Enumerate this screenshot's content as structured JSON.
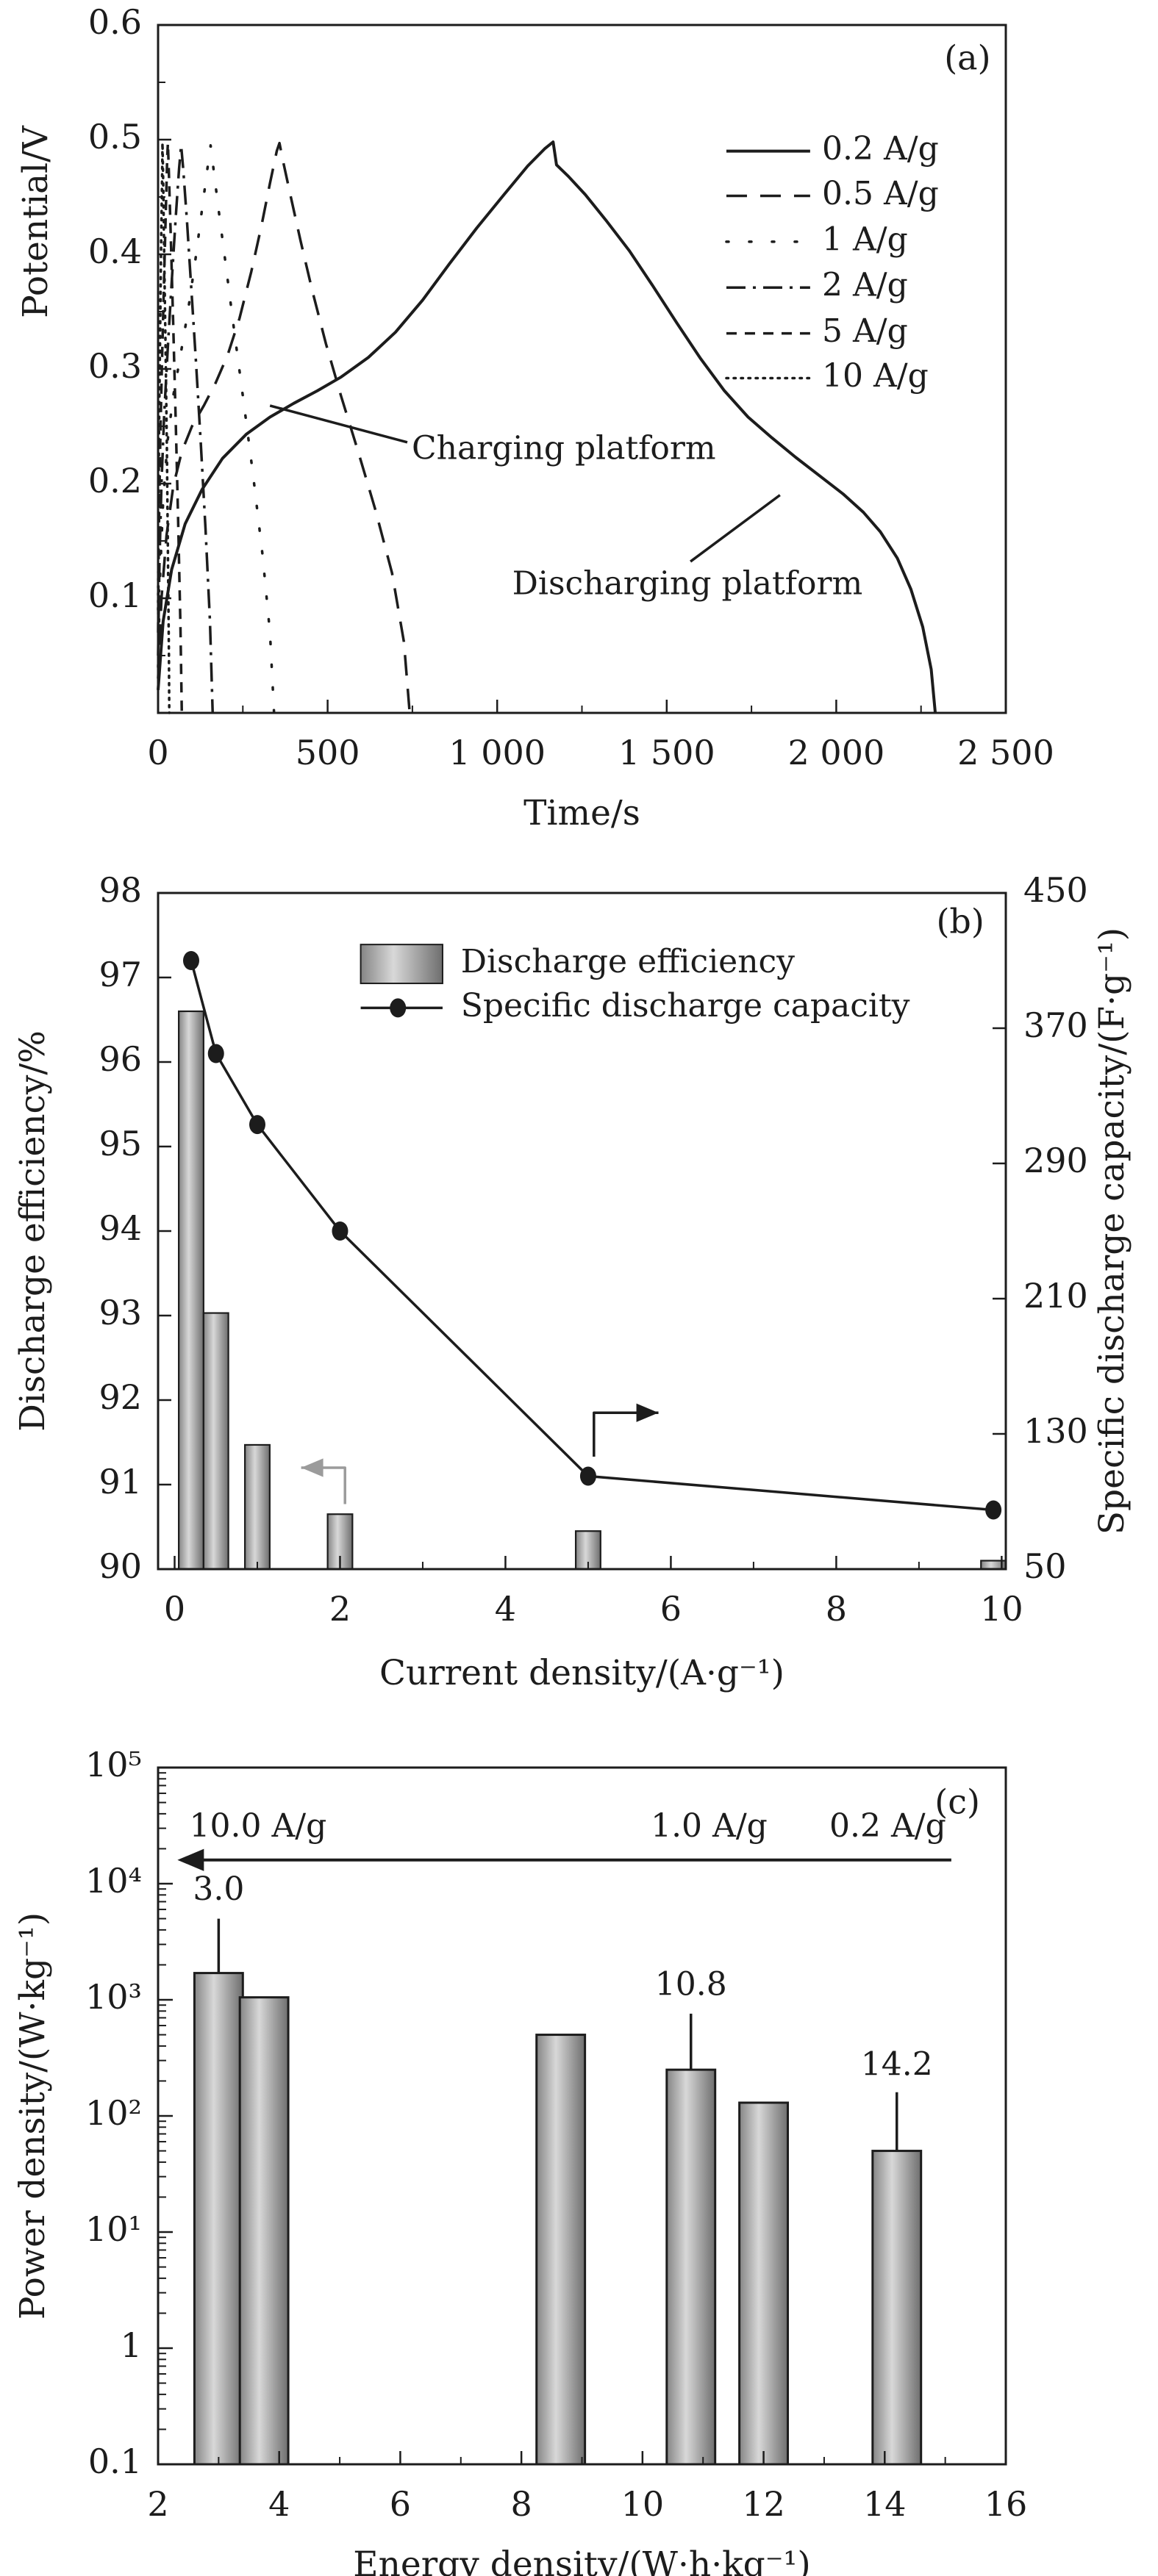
{
  "figure": {
    "ink": "#1c1c1c",
    "background": "#ffffff",
    "bar_gradient": [
      "#858585",
      "#d8d8d8",
      "#6e6e6e"
    ],
    "gray_arrow_color": "#9b9b9b"
  },
  "chart_data": [
    {
      "id": "a",
      "type": "line",
      "panel_label": "(a)",
      "panel_label_pos": [
        2387,
        0.569
      ],
      "xlabel": "Time/s",
      "ylabel": "Potential/V",
      "xlim": [
        0,
        2500
      ],
      "ylim": [
        0,
        0.6
      ],
      "xticks": [
        0,
        500,
        1000,
        1500,
        2000,
        2500
      ],
      "xtick_labels": [
        "0",
        "500",
        "1 000",
        "1 500",
        "2 000",
        "2 500"
      ],
      "xminor": [
        250,
        750,
        1250,
        1750,
        2250
      ],
      "yticks": [
        0.1,
        0.2,
        0.3,
        0.4,
        0.5,
        0.6
      ],
      "ytick_labels": [
        "0.1",
        "0.2",
        "0.3",
        "0.4",
        "0.5",
        "0.6"
      ],
      "yminor": [
        0.05,
        0.15,
        0.25,
        0.35,
        0.45,
        0.55
      ],
      "grid": false,
      "legend": {
        "position": "upper right",
        "line_x": [
          1676,
          1923
        ],
        "text_x": 1958,
        "rows_v": [
          0.49,
          0.451,
          0.411,
          0.371,
          0.331,
          0.292
        ]
      },
      "series": [
        {
          "name": "0.2 A/g",
          "dash": "",
          "cap": "butt",
          "width": 4,
          "points": [
            [
              0,
              0.02
            ],
            [
              15,
              0.08
            ],
            [
              40,
              0.125
            ],
            [
              80,
              0.165
            ],
            [
              130,
              0.195
            ],
            [
              190,
              0.222
            ],
            [
              260,
              0.243
            ],
            [
              330,
              0.258
            ],
            [
              400,
              0.27
            ],
            [
              470,
              0.281
            ],
            [
              540,
              0.293
            ],
            [
              620,
              0.31
            ],
            [
              700,
              0.332
            ],
            [
              780,
              0.36
            ],
            [
              860,
              0.392
            ],
            [
              940,
              0.423
            ],
            [
              1020,
              0.452
            ],
            [
              1090,
              0.477
            ],
            [
              1140,
              0.492
            ],
            [
              1165,
              0.498
            ],
            [
              1175,
              0.478
            ],
            [
              1210,
              0.468
            ],
            [
              1260,
              0.452
            ],
            [
              1320,
              0.43
            ],
            [
              1390,
              0.403
            ],
            [
              1460,
              0.372
            ],
            [
              1530,
              0.34
            ],
            [
              1600,
              0.309
            ],
            [
              1670,
              0.281
            ],
            [
              1740,
              0.258
            ],
            [
              1810,
              0.24
            ],
            [
              1880,
              0.223
            ],
            [
              1950,
              0.207
            ],
            [
              2020,
              0.191
            ],
            [
              2080,
              0.175
            ],
            [
              2130,
              0.158
            ],
            [
              2180,
              0.135
            ],
            [
              2220,
              0.108
            ],
            [
              2255,
              0.075
            ],
            [
              2280,
              0.038
            ],
            [
              2292,
              0.0
            ]
          ]
        },
        {
          "name": "0.5 A/g",
          "dash": "28 18",
          "cap": "butt",
          "width": 3.5,
          "points": [
            [
              0,
              0.03
            ],
            [
              10,
              0.1
            ],
            [
              25,
              0.155
            ],
            [
              45,
              0.198
            ],
            [
              70,
              0.228
            ],
            [
              100,
              0.25
            ],
            [
              135,
              0.268
            ],
            [
              170,
              0.288
            ],
            [
              205,
              0.312
            ],
            [
              240,
              0.344
            ],
            [
              275,
              0.385
            ],
            [
              305,
              0.425
            ],
            [
              330,
              0.462
            ],
            [
              350,
              0.49
            ],
            [
              358,
              0.497
            ],
            [
              368,
              0.482
            ],
            [
              390,
              0.452
            ],
            [
              420,
              0.412
            ],
            [
              455,
              0.368
            ],
            [
              495,
              0.322
            ],
            [
              540,
              0.276
            ],
            [
              590,
              0.228
            ],
            [
              640,
              0.178
            ],
            [
              690,
              0.122
            ],
            [
              725,
              0.062
            ],
            [
              742,
              0.0
            ]
          ]
        },
        {
          "name": "1 A/g",
          "dash": "3 28",
          "cap": "round",
          "width": 3.5,
          "points": [
            [
              0,
              0.04
            ],
            [
              6,
              0.12
            ],
            [
              15,
              0.185
            ],
            [
              28,
              0.237
            ],
            [
              45,
              0.277
            ],
            [
              65,
              0.31
            ],
            [
              88,
              0.35
            ],
            [
              110,
              0.395
            ],
            [
              130,
              0.44
            ],
            [
              147,
              0.478
            ],
            [
              155,
              0.495
            ],
            [
              162,
              0.478
            ],
            [
              178,
              0.44
            ],
            [
              200,
              0.39
            ],
            [
              225,
              0.332
            ],
            [
              252,
              0.272
            ],
            [
              280,
              0.208
            ],
            [
              308,
              0.138
            ],
            [
              330,
              0.07
            ],
            [
              342,
              0.0
            ]
          ]
        },
        {
          "name": "2 A/g",
          "dash": "26 10 4 10",
          "cap": "butt",
          "width": 3.5,
          "points": [
            [
              0,
              0.05
            ],
            [
              4,
              0.13
            ],
            [
              10,
              0.2
            ],
            [
              18,
              0.26
            ],
            [
              28,
              0.315
            ],
            [
              40,
              0.375
            ],
            [
              52,
              0.432
            ],
            [
              62,
              0.475
            ],
            [
              68,
              0.495
            ],
            [
              74,
              0.475
            ],
            [
              85,
              0.43
            ],
            [
              98,
              0.37
            ],
            [
              112,
              0.305
            ],
            [
              126,
              0.235
            ],
            [
              140,
              0.16
            ],
            [
              153,
              0.08
            ],
            [
              161,
              0.0
            ]
          ]
        },
        {
          "name": "5 A/g",
          "dash": "14 11",
          "cap": "butt",
          "width": 3.5,
          "points": [
            [
              0,
              0.07
            ],
            [
              2,
              0.15
            ],
            [
              6,
              0.23
            ],
            [
              11,
              0.3
            ],
            [
              17,
              0.37
            ],
            [
              23,
              0.44
            ],
            [
              27,
              0.485
            ],
            [
              29,
              0.497
            ],
            [
              32,
              0.47
            ],
            [
              38,
              0.41
            ],
            [
              45,
              0.335
            ],
            [
              52,
              0.255
            ],
            [
              59,
              0.17
            ],
            [
              66,
              0.075
            ],
            [
              70,
              0.0
            ]
          ]
        },
        {
          "name": "10 A/g",
          "dash": "2.5 7.5",
          "cap": "round",
          "width": 3.5,
          "points": [
            [
              0,
              0.09
            ],
            [
              1,
              0.17
            ],
            [
              3,
              0.25
            ],
            [
              6,
              0.33
            ],
            [
              9,
              0.41
            ],
            [
              12,
              0.47
            ],
            [
              13,
              0.497
            ],
            [
              15,
              0.465
            ],
            [
              18,
              0.4
            ],
            [
              22,
              0.32
            ],
            [
              26,
              0.23
            ],
            [
              29,
              0.14
            ],
            [
              32,
              0.05
            ],
            [
              33,
              0.0
            ]
          ]
        }
      ],
      "annotations": [
        {
          "text": "Charging platform",
          "anchor": "start",
          "text_pos": [
            748,
            0.229
          ],
          "line": [
            [
              330,
              0.268
            ],
            [
              735,
              0.236
            ]
          ]
        },
        {
          "text": "Discharging platform",
          "anchor": "middle",
          "text_pos": [
            1561,
            0.111
          ],
          "line": [
            [
              1834,
              0.19
            ],
            [
              1570,
              0.132
            ]
          ]
        }
      ]
    },
    {
      "id": "b",
      "type": "bar+line dual-axis",
      "panel_label": "(b)",
      "panel_label_pos": [
        9.5,
        97.63
      ],
      "xlabel": "Current density/(A·g⁻¹)",
      "ylabel_left": "Discharge efficiency/%",
      "ylabel_right": "Specific discharge capacity/(F·g⁻¹)",
      "xlim": [
        -0.2,
        10.05
      ],
      "ylim_left": [
        90,
        98
      ],
      "ylim_right": [
        50,
        450
      ],
      "xticks": [
        0,
        2,
        4,
        6,
        8,
        10
      ],
      "xtick_labels": [
        "0",
        "2",
        "4",
        "6",
        "8",
        "10"
      ],
      "xminor": [
        1,
        3,
        5,
        7,
        9
      ],
      "yticks_left": [
        90,
        91,
        92,
        93,
        94,
        95,
        96,
        97,
        98
      ],
      "ytick_labels_left": [
        "90",
        "91",
        "92",
        "93",
        "94",
        "95",
        "96",
        "97",
        "98"
      ],
      "yticks_right": [
        50,
        130,
        210,
        290,
        370,
        450
      ],
      "ytick_labels_right": [
        "50",
        "130",
        "210",
        "290",
        "370",
        "450"
      ],
      "categories": [
        0.2,
        0.5,
        1,
        2,
        5,
        9.9
      ],
      "bar_width": 0.3,
      "series": [
        {
          "name": "Discharge efficiency",
          "type": "bar",
          "axis": "left",
          "values": [
            96.6,
            93.03,
            91.47,
            90.65,
            90.45,
            90.1
          ]
        },
        {
          "name": "Specific discharge capacity",
          "type": "line+dot",
          "axis": "right",
          "values": [
            410,
            355,
            313,
            250,
            105,
            85
          ]
        }
      ],
      "legend": {
        "swatch_x": [
          2.25,
          3.24
        ],
        "swatch_v": [
          97.39,
          96.93
        ],
        "row1_text_x": 3.46,
        "row1_v": 97.16,
        "row2_line_x": [
          2.25,
          3.24
        ],
        "row2_dot_x": 2.7,
        "row2_text_x": 3.46,
        "row2_v": 96.64
      },
      "axis_pointer_arrows": [
        {
          "target": "left-axis",
          "color": "gray",
          "points": [
            [
              2.06,
              90.77
            ],
            [
              2.06,
              91.2
            ],
            [
              1.53,
              91.2
            ]
          ]
        },
        {
          "target": "right-axis",
          "color": "ink",
          "points": [
            [
              5.07,
              91.33
            ],
            [
              5.07,
              91.85
            ],
            [
              5.85,
              91.85
            ]
          ]
        }
      ]
    },
    {
      "id": "c",
      "type": "bar",
      "panel_label": "(c)",
      "panel_label_pos": [
        15.2,
        48000
      ],
      "xlabel": "Energy density/(W·h·kg⁻¹)",
      "ylabel": "Power density/(W·kg⁻¹)",
      "xlim": [
        2,
        16
      ],
      "ylim_log": [
        0.1,
        100000
      ],
      "xticks": [
        2,
        4,
        6,
        8,
        10,
        12,
        14,
        16
      ],
      "xtick_labels": [
        "2",
        "4",
        "6",
        "8",
        "10",
        "12",
        "14",
        "16"
      ],
      "xminor": [
        3,
        5,
        7,
        9,
        11,
        13,
        15
      ],
      "ytick_decades": [
        0.1,
        1,
        10,
        100,
        1000,
        10000,
        100000
      ],
      "ytick_labels": [
        "0.1",
        "1",
        "10¹",
        "10²",
        "10³",
        "10⁴",
        "10⁵"
      ],
      "categories": [
        3.0,
        3.75,
        8.65,
        10.8,
        12.0,
        14.2
      ],
      "values": [
        1700,
        1050,
        500,
        250,
        130,
        50
      ],
      "bar_width": 0.8,
      "value_callouts": [
        {
          "x": 3.0,
          "label": "3.0",
          "line_v": [
            1700,
            5000
          ],
          "label_v": 8600
        },
        {
          "x": 10.8,
          "label": "10.8",
          "line_v": [
            250,
            760
          ],
          "label_v": 1300
        },
        {
          "x": 14.2,
          "label": "14.2",
          "line_v": [
            50,
            160
          ],
          "label_v": 265
        }
      ],
      "rate_arrow": {
        "v": 16000,
        "x_from": 15.1,
        "x_to": 2.32,
        "direction": "left"
      },
      "rate_labels": [
        {
          "text": "10.0 A/g",
          "pos": [
            3.65,
            30000
          ]
        },
        {
          "text": "1.0 A/g",
          "pos": [
            11.1,
            30000
          ]
        },
        {
          "text": "0.2 A/g",
          "pos": [
            14.05,
            30000
          ]
        }
      ]
    }
  ]
}
